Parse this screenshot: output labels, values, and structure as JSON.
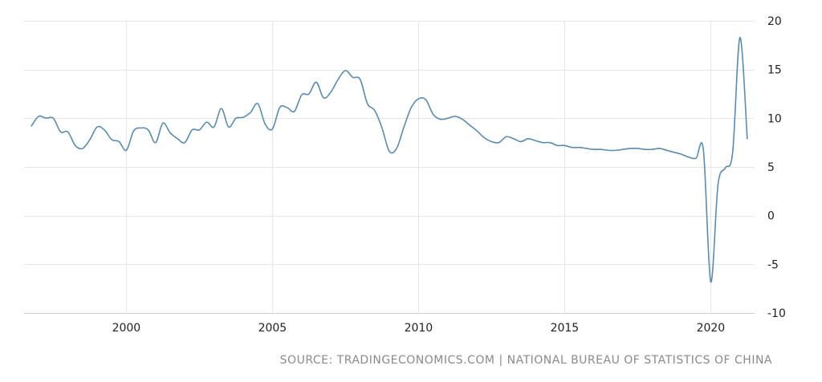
{
  "chart_data": {
    "type": "line",
    "title": "",
    "xlabel": "",
    "ylabel": "",
    "grid": true,
    "xlim": [
      1996.5,
      2021.5
    ],
    "ylim": [
      -10,
      20
    ],
    "x_ticks": [
      2000,
      2005,
      2010,
      2015,
      2020
    ],
    "x_tick_labels": [
      "2000",
      "2005",
      "2010",
      "2015",
      "2020"
    ],
    "y_ticks": [
      20,
      15,
      10,
      5,
      0,
      -5,
      -10
    ],
    "y_tick_labels": [
      "20",
      "15",
      "10",
      "5",
      "0",
      "-5",
      "-10"
    ],
    "line_color": "#5a8bb0",
    "grid_color": "#e6e6e6",
    "series": [
      {
        "x": [
          1996.75,
          1997.0,
          1997.25,
          1997.5,
          1997.75,
          1998.0,
          1998.25,
          1998.5,
          1998.75,
          1999.0,
          1999.25,
          1999.5,
          1999.75,
          2000.0,
          2000.25,
          2000.5,
          2000.75,
          2001.0,
          2001.25,
          2001.5,
          2001.75,
          2002.0,
          2002.25,
          2002.5,
          2002.75,
          2003.0,
          2003.25,
          2003.5,
          2003.75,
          2004.0,
          2004.25,
          2004.5,
          2004.75,
          2005.0,
          2005.25,
          2005.5,
          2005.75,
          2006.0,
          2006.25,
          2006.5,
          2006.75,
          2007.0,
          2007.25,
          2007.5,
          2007.75,
          2008.0,
          2008.25,
          2008.5,
          2008.75,
          2009.0,
          2009.25,
          2009.5,
          2009.75,
          2010.0,
          2010.25,
          2010.5,
          2010.75,
          2011.0,
          2011.25,
          2011.5,
          2011.75,
          2012.0,
          2012.25,
          2012.5,
          2012.75,
          2013.0,
          2013.25,
          2013.5,
          2013.75,
          2014.0,
          2014.25,
          2014.5,
          2014.75,
          2015.0,
          2015.25,
          2015.5,
          2015.75,
          2016.0,
          2016.25,
          2016.5,
          2016.75,
          2017.0,
          2017.25,
          2017.5,
          2017.75,
          2018.0,
          2018.25,
          2018.5,
          2018.75,
          2019.0,
          2019.25,
          2019.5,
          2019.75,
          2020.0,
          2020.25,
          2020.5,
          2020.75,
          2021.0,
          2021.25
        ],
        "y": [
          9.2,
          10.2,
          10.0,
          10.0,
          8.6,
          8.6,
          7.2,
          6.9,
          7.8,
          9.1,
          8.8,
          7.8,
          7.6,
          6.7,
          8.7,
          9.0,
          8.8,
          7.5,
          9.5,
          8.5,
          7.9,
          7.5,
          8.8,
          8.8,
          9.6,
          9.1,
          11.0,
          9.1,
          10.0,
          10.1,
          10.6,
          11.5,
          9.4,
          8.9,
          11.1,
          11.1,
          10.7,
          12.4,
          12.5,
          13.7,
          12.1,
          12.7,
          14.0,
          14.9,
          14.2,
          14.0,
          11.5,
          10.8,
          9.0,
          6.6,
          6.9,
          9.1,
          11.1,
          12.0,
          11.9,
          10.4,
          9.9,
          10.0,
          10.2,
          9.9,
          9.3,
          8.7,
          8.0,
          7.6,
          7.5,
          8.1,
          7.9,
          7.6,
          7.9,
          7.7,
          7.5,
          7.5,
          7.2,
          7.2,
          7.0,
          7.0,
          6.9,
          6.8,
          6.8,
          6.7,
          6.7,
          6.8,
          6.9,
          6.9,
          6.8,
          6.8,
          6.9,
          6.7,
          6.5,
          6.3,
          6.0,
          5.9,
          6.7,
          -6.8,
          3.2,
          4.9,
          6.5,
          18.3,
          7.9
        ]
      }
    ]
  },
  "source": "SOURCE: TRADINGECONOMICS.COM | NATIONAL BUREAU OF STATISTICS OF CHINA"
}
